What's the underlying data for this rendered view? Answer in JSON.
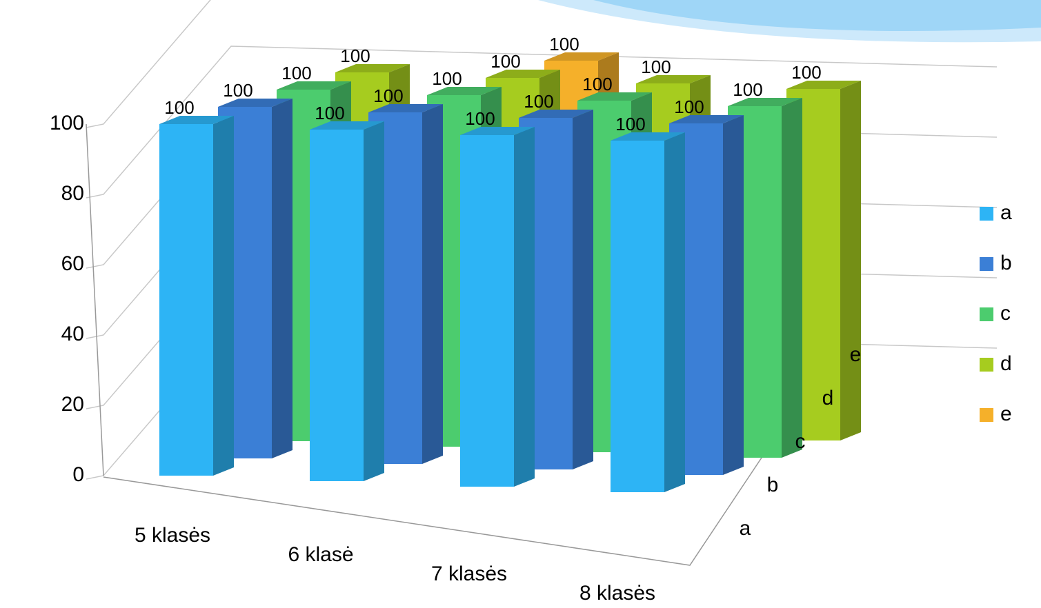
{
  "chart_data": {
    "type": "bar3d",
    "categories": [
      "5 klasės",
      "6 klasė",
      "7 klasės",
      "8 klasės"
    ],
    "series": [
      {
        "name": "a",
        "color": "#2db4f5",
        "values": [
          100,
          100,
          100,
          100
        ]
      },
      {
        "name": "b",
        "color": "#3b7fd6",
        "values": [
          100,
          100,
          100,
          100
        ]
      },
      {
        "name": "c",
        "color": "#4ccc6e",
        "values": [
          100,
          100,
          100,
          100
        ]
      },
      {
        "name": "d",
        "color": "#a6cc1f",
        "values": [
          100,
          100,
          100,
          100
        ]
      },
      {
        "name": "e",
        "color": "#f5b02a",
        "values": [
          null,
          100,
          null,
          null
        ]
      }
    ],
    "ylim": [
      0,
      100
    ],
    "yticks": [
      0,
      20,
      40,
      60,
      80,
      100
    ],
    "grid": true,
    "legend": "right"
  }
}
